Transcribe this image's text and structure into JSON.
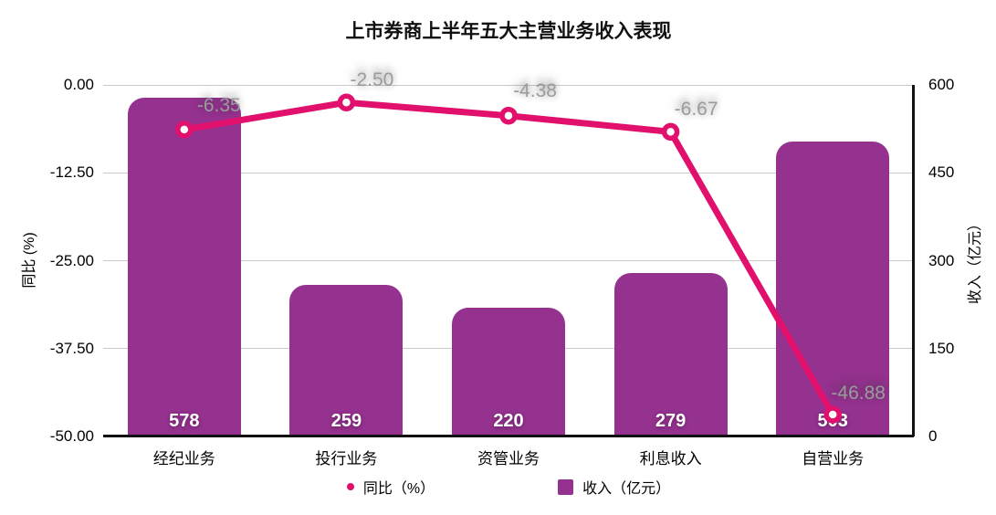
{
  "title": "上市券商上半年五大主营业务收入表现",
  "colors": {
    "bar": "#95318F",
    "line": "#E1106D",
    "grid": "#C9C9C9",
    "axis": "#111111",
    "point_label": "#9B9B9B",
    "bar_label": "#FFFFFF"
  },
  "chart_data": {
    "type": "bar",
    "title": "上市券商上半年五大主营业务收入表现",
    "categories": [
      "经纪业务",
      "投行业务",
      "资管业务",
      "利息收入",
      "自营业务"
    ],
    "series": [
      {
        "name": "收入（亿元）",
        "render": "bar",
        "axis": "right",
        "values": [
          578,
          259,
          220,
          279,
          503
        ],
        "color": "#95318F",
        "value_labels": [
          "578",
          "259",
          "220",
          "279",
          "503"
        ]
      },
      {
        "name": "同比（%）",
        "render": "line",
        "axis": "left",
        "values": [
          -6.35,
          -2.5,
          -4.38,
          -6.67,
          -46.88
        ],
        "color": "#E1106D",
        "value_labels": [
          "-6.35",
          "-2.50",
          "-4.38",
          "-6.67",
          "-46.88"
        ]
      }
    ],
    "left_axis": {
      "label": "同比 (%)",
      "min": -50,
      "max": 0,
      "ticks": [
        "0.00",
        "-12.50",
        "-25.00",
        "-37.50",
        "-50.00"
      ]
    },
    "right_axis": {
      "label": "收入（亿元）",
      "min": 0,
      "max": 600,
      "ticks": [
        "600",
        "450",
        "300",
        "150",
        "0"
      ]
    },
    "grid": true,
    "legend_position": "bottom",
    "legend": [
      {
        "label": "同比（%）",
        "marker": "ring"
      },
      {
        "label": "收入（亿元）",
        "marker": "square"
      }
    ]
  }
}
